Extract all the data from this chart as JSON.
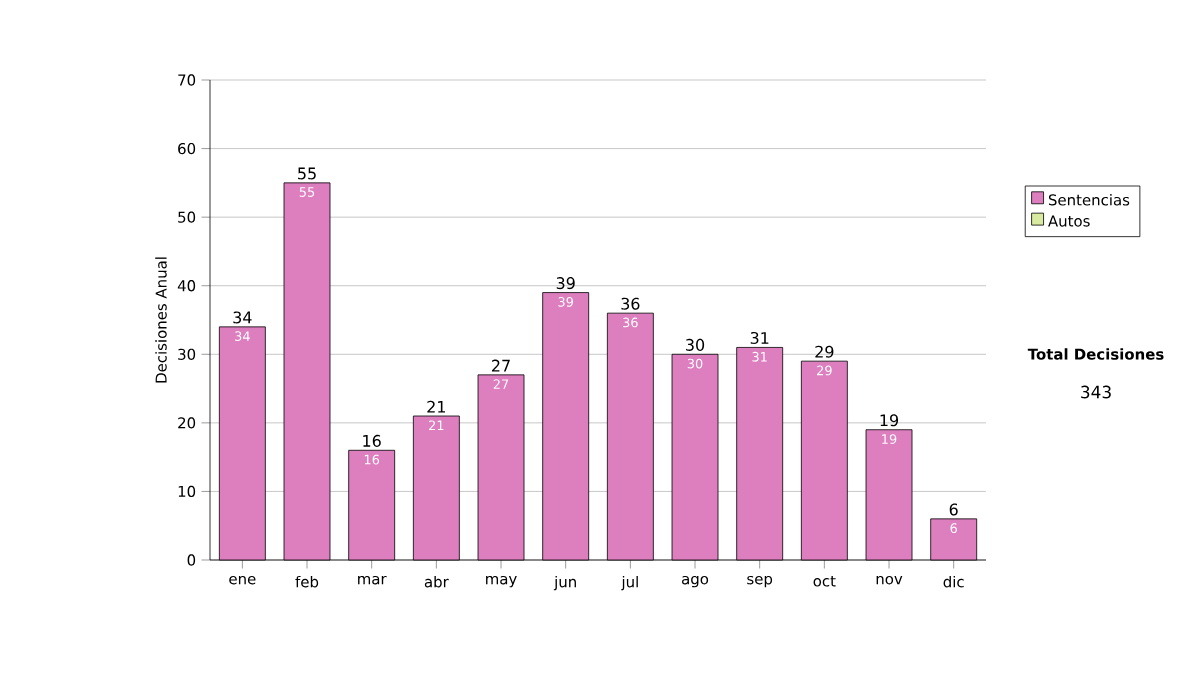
{
  "chart_data": {
    "type": "bar",
    "stacked": true,
    "ylabel": "Decisiones Anual",
    "categories": [
      "ene",
      "feb",
      "mar",
      "abr",
      "may",
      "jun",
      "jul",
      "ago",
      "sep",
      "oct",
      "nov",
      "dic"
    ],
    "series": [
      {
        "name": "Sentencias",
        "color": "#dd7fbf",
        "values": [
          34,
          55,
          16,
          21,
          27,
          39,
          36,
          30,
          31,
          29,
          19,
          6
        ],
        "value_labels": [
          "34",
          "55",
          "16",
          "21",
          "27",
          "39",
          "36",
          "30",
          "31",
          "29",
          "19",
          "6"
        ]
      },
      {
        "name": "Autos",
        "color": "#d9eaa0",
        "values": [
          0,
          0,
          0,
          0,
          0,
          0,
          0,
          0,
          0,
          0,
          0,
          0
        ]
      }
    ],
    "totals": [
      "34",
      "55",
      "16",
      "21",
      "27",
      "39",
      "36",
      "30",
      "31",
      "29",
      "19",
      "6"
    ],
    "ylim": [
      0,
      70
    ],
    "yticks": [
      0,
      10,
      20,
      30,
      40,
      50,
      60,
      70
    ],
    "grid": "y",
    "legend": "right",
    "annotations": [
      "Total Decisiones",
      "343"
    ]
  }
}
